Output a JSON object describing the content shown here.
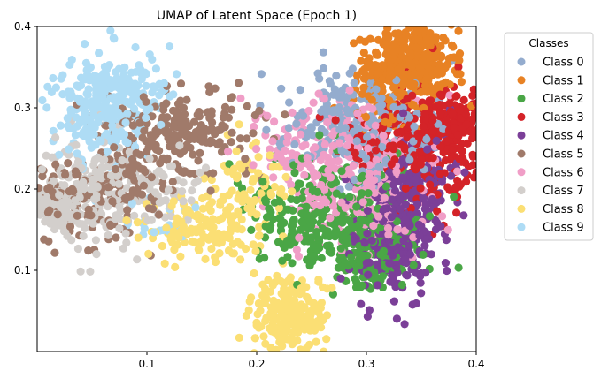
{
  "chart_data": {
    "type": "scatter",
    "title": "UMAP of Latent Space (Epoch 1)",
    "xlabel": "",
    "ylabel": "",
    "xlim": [
      0.0,
      0.4
    ],
    "ylim": [
      0.0,
      0.4
    ],
    "x_ticks": [
      {
        "value": 0.1,
        "label": "0.1"
      },
      {
        "value": 0.2,
        "label": "0.2"
      },
      {
        "value": 0.3,
        "label": "0.3"
      },
      {
        "value": 0.4,
        "label": "0.4"
      }
    ],
    "y_ticks": [
      {
        "value": 0.1,
        "label": "0.1"
      },
      {
        "value": 0.2,
        "label": "0.2"
      },
      {
        "value": 0.3,
        "label": "0.3"
      },
      {
        "value": 0.4,
        "label": "0.4"
      }
    ],
    "grid": false,
    "legend": {
      "title": "Classes",
      "placement": "outside-right-top"
    },
    "series": [
      {
        "name": "Class 0",
        "color": "#94acce",
        "clusters": [
          {
            "cx": 0.285,
            "cy": 0.285,
            "sx": 0.03,
            "sy": 0.03,
            "n": 170
          },
          {
            "cx": 0.325,
            "cy": 0.255,
            "sx": 0.025,
            "sy": 0.03,
            "n": 90
          }
        ]
      },
      {
        "name": "Class 1",
        "color": "#e88224",
        "clusters": [
          {
            "cx": 0.34,
            "cy": 0.355,
            "sx": 0.022,
            "sy": 0.025,
            "n": 380
          },
          {
            "cx": 0.31,
            "cy": 0.31,
            "sx": 0.02,
            "sy": 0.02,
            "n": 40
          }
        ]
      },
      {
        "name": "Class 2",
        "color": "#4aa646",
        "clusters": [
          {
            "cx": 0.265,
            "cy": 0.165,
            "sx": 0.035,
            "sy": 0.035,
            "n": 300
          },
          {
            "cx": 0.305,
            "cy": 0.115,
            "sx": 0.02,
            "sy": 0.02,
            "n": 100
          }
        ]
      },
      {
        "name": "Class 3",
        "color": "#d42328",
        "clusters": [
          {
            "cx": 0.36,
            "cy": 0.255,
            "sx": 0.025,
            "sy": 0.035,
            "n": 280
          },
          {
            "cx": 0.385,
            "cy": 0.285,
            "sx": 0.012,
            "sy": 0.015,
            "n": 80
          },
          {
            "cx": 0.31,
            "cy": 0.25,
            "sx": 0.02,
            "sy": 0.02,
            "n": 60
          }
        ]
      },
      {
        "name": "Class 4",
        "color": "#7b3f98",
        "clusters": [
          {
            "cx": 0.325,
            "cy": 0.145,
            "sx": 0.022,
            "sy": 0.04,
            "n": 280
          },
          {
            "cx": 0.35,
            "cy": 0.215,
            "sx": 0.02,
            "sy": 0.03,
            "n": 90
          }
        ]
      },
      {
        "name": "Class 5",
        "color": "#a07a6a",
        "clusters": [
          {
            "cx": 0.14,
            "cy": 0.27,
            "sx": 0.03,
            "sy": 0.025,
            "n": 170
          },
          {
            "cx": 0.04,
            "cy": 0.19,
            "sx": 0.03,
            "sy": 0.03,
            "n": 140
          },
          {
            "cx": 0.09,
            "cy": 0.23,
            "sx": 0.025,
            "sy": 0.03,
            "n": 80
          }
        ]
      },
      {
        "name": "Class 6",
        "color": "#f09ec7",
        "clusters": [
          {
            "cx": 0.29,
            "cy": 0.21,
            "sx": 0.035,
            "sy": 0.04,
            "n": 260
          },
          {
            "cx": 0.255,
            "cy": 0.25,
            "sx": 0.03,
            "sy": 0.03,
            "n": 90
          }
        ]
      },
      {
        "name": "Class 7",
        "color": "#d3cfcc",
        "clusters": [
          {
            "cx": 0.045,
            "cy": 0.2,
            "sx": 0.035,
            "sy": 0.035,
            "n": 230
          },
          {
            "cx": 0.02,
            "cy": 0.175,
            "sx": 0.015,
            "sy": 0.015,
            "n": 60
          },
          {
            "cx": 0.12,
            "cy": 0.2,
            "sx": 0.015,
            "sy": 0.02,
            "n": 40
          }
        ]
      },
      {
        "name": "Class 8",
        "color": "#fbdf74",
        "clusters": [
          {
            "cx": 0.15,
            "cy": 0.15,
            "sx": 0.03,
            "sy": 0.02,
            "n": 140
          },
          {
            "cx": 0.23,
            "cy": 0.04,
            "sx": 0.018,
            "sy": 0.025,
            "n": 200
          },
          {
            "cx": 0.2,
            "cy": 0.2,
            "sx": 0.02,
            "sy": 0.03,
            "n": 70
          }
        ]
      },
      {
        "name": "Class 9",
        "color": "#aedcf5",
        "clusters": [
          {
            "cx": 0.07,
            "cy": 0.315,
            "sx": 0.025,
            "sy": 0.025,
            "n": 240
          },
          {
            "cx": 0.06,
            "cy": 0.265,
            "sx": 0.02,
            "sy": 0.02,
            "n": 70
          },
          {
            "cx": 0.11,
            "cy": 0.16,
            "sx": 0.02,
            "sy": 0.015,
            "n": 20
          }
        ]
      }
    ]
  }
}
